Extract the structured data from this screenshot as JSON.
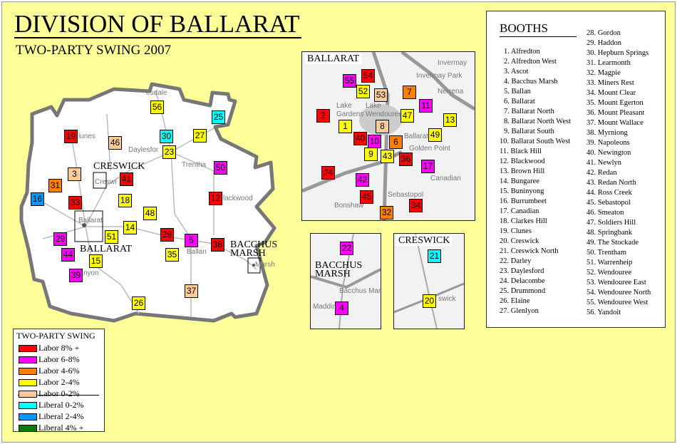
{
  "title": "DIVISION OF BALLARAT",
  "subtitle": "TWO-PARTY SWING 2007",
  "colors": {
    "labor_8_plus": "#ff0000",
    "labor_6_8": "#ff00ff",
    "labor_4_6": "#ff8000",
    "labor_2_4": "#ffff00",
    "labor_0_2": "#ffcc99",
    "liberal_0_2": "#00ffff",
    "liberal_2_4": "#0099ff",
    "liberal_4_plus": "#008000",
    "background": "#ffff99"
  },
  "legend": {
    "title": "TWO-PARTY SWING",
    "items": [
      {
        "key": "labor_8_plus",
        "label": "Labor 8% +"
      },
      {
        "key": "labor_6_8",
        "label": "Labor 6-8%"
      },
      {
        "key": "labor_4_6",
        "label": "Labor 4-6%"
      },
      {
        "key": "labor_2_4",
        "label": "Labor 2-4%"
      },
      {
        "key": "labor_0_2",
        "label": "Labor 0-2%"
      },
      {
        "key": "liberal_0_2",
        "label": "Liberal 0-2%"
      },
      {
        "key": "liberal_2_4",
        "label": "Liberal 2-4%"
      },
      {
        "key": "liberal_4_plus",
        "label": "Liberal 4% +"
      }
    ]
  },
  "map_labels": {
    "creswick": "CRESWICK",
    "ballarat": "BALLARAT",
    "bacchus_marsh_1": "BACCHUS",
    "bacchus_marsh_2": "MARSH"
  },
  "insets": {
    "ballarat": "BALLARAT",
    "bacchus_marsh_1": "BACCHUS",
    "bacchus_marsh_2": "MARSH",
    "creswick": "CRESWICK"
  },
  "place_names": {
    "main": [
      "esdale",
      "lunes",
      "Daylesfor",
      "Trentha",
      "Creswi",
      "lackwood",
      "Ballarat",
      "Ballan",
      "nyon",
      "Marsh"
    ],
    "ballarat_inset": [
      "Invermay",
      "Invermay Park",
      "Nerrena",
      "Lake Gardens",
      "Lake Wendouree",
      "Ballarat",
      "Golden Point",
      "Canadian",
      "Sebastopol",
      "Bonshaw"
    ],
    "bacchus_inset": [
      "Bacchus Marsh",
      "Maddingl"
    ],
    "creswick_inset": [
      "swick"
    ]
  },
  "booths_panel": {
    "title": "BOOTHS",
    "list": [
      "Alfredton",
      "Alfredton West",
      "Ascot",
      "Bacchus Marsh",
      "Ballan",
      "Ballarat",
      "Ballarat North",
      "Ballarat North West",
      "Ballarat South",
      "Ballarat South West",
      "Black Hill",
      "Blackwood",
      "Brown Hill",
      "Bungaree",
      "Buninyong",
      "Burrumbeet",
      "Canadian",
      "Clarkes Hill",
      "Clunes",
      "Creswick",
      "Creswick North",
      "Darley",
      "Daylesford",
      "Delacombe",
      "Drummond",
      "Elaine",
      "Glenlyon",
      "Gordon",
      "Haddon",
      "Hepburn Springs",
      "Learmonth",
      "Magpie",
      "Miners Rest",
      "Mount Clear",
      "Mount Egerton",
      "Mount Pleasant",
      "Mount Wallace",
      "Myrniong",
      "Napoleons",
      "Newington",
      "Newlyn",
      "Redan",
      "Redan North",
      "Ross Creek",
      "Sebastopol",
      "Smeaton",
      "Soldiers Hill",
      "Springbank",
      "The Stockade",
      "Trentham",
      "Warrenheip",
      "Wendouree",
      "Wendouree East",
      "Wendouree North",
      "Wendouree West",
      "Yandoit"
    ]
  },
  "booth_swing": {
    "1": "labor_2_4",
    "2": "labor_8_plus",
    "3": "labor_0_2",
    "4": "labor_6_8",
    "5": "labor_6_8",
    "6": "labor_4_6",
    "7": "labor_4_6",
    "8": "labor_0_2",
    "9": "labor_2_4",
    "10": "labor_6_8",
    "11": "labor_6_8",
    "12": "labor_8_plus",
    "13": "labor_2_4",
    "14": "labor_2_4",
    "15": "labor_2_4",
    "16": "liberal_2_4",
    "17": "labor_6_8",
    "18": "labor_2_4",
    "19": "labor_8_plus",
    "20": "labor_2_4",
    "21": "liberal_0_2",
    "22": "labor_6_8",
    "23": "labor_2_4",
    "24": "labor_8_plus",
    "25": "liberal_0_2",
    "26": "labor_2_4",
    "27": "labor_2_4",
    "28": "labor_8_plus",
    "29": "labor_6_8",
    "30": "liberal_0_2",
    "31": "labor_4_6",
    "32": "labor_4_6",
    "33": "labor_8_plus",
    "34": "labor_8_plus",
    "35": "labor_2_4",
    "36": "labor_8_plus",
    "37": "labor_0_2",
    "38": "labor_8_plus",
    "39": "labor_6_8",
    "40": "labor_8_plus",
    "41": "labor_8_plus",
    "42": "labor_6_8",
    "43": "labor_2_4",
    "44": "labor_6_8",
    "45": "labor_8_plus",
    "46": "labor_0_2",
    "47": "labor_2_4",
    "48": "labor_2_4",
    "49": "labor_2_4",
    "50": "labor_6_8",
    "51": "labor_2_4",
    "52": "labor_2_4",
    "53": "labor_0_2",
    "54": "labor_8_plus",
    "55": "labor_6_8",
    "56": "labor_2_4"
  }
}
